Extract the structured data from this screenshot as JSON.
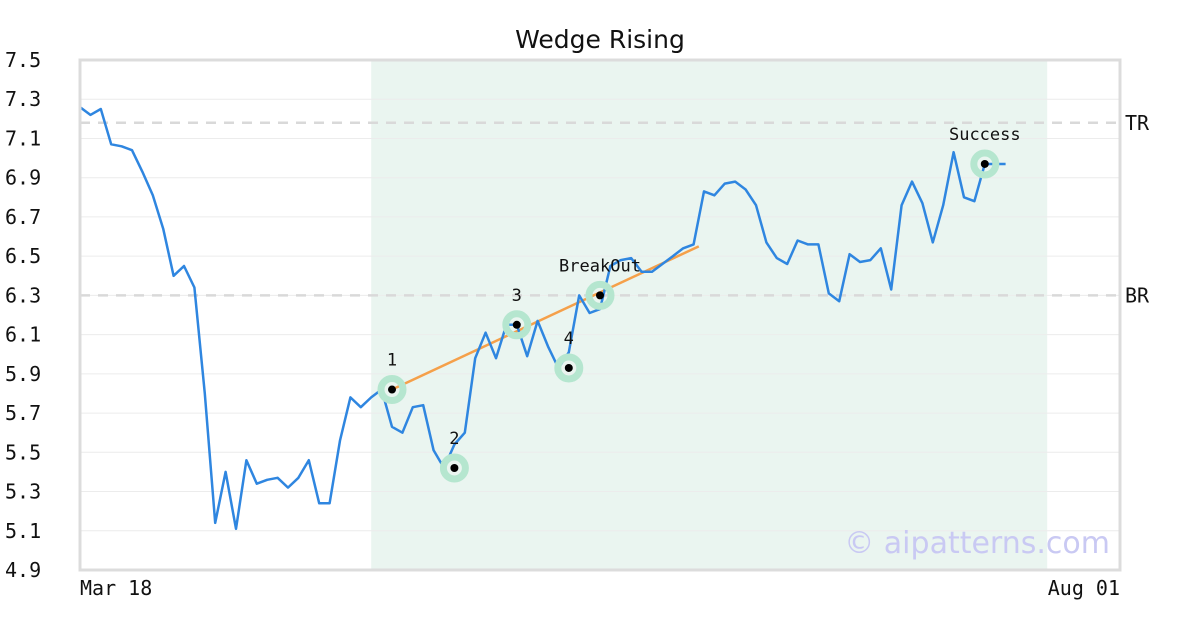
{
  "chart_data": {
    "type": "line",
    "title": "Wedge Rising",
    "xlabel": "",
    "ylabel": "",
    "x_tick_labels": [
      "Mar 18",
      "Aug 01"
    ],
    "x_range": [
      0,
      100
    ],
    "ylim": [
      4.9,
      7.5
    ],
    "y_ticks": [
      4.9,
      5.1,
      5.3,
      5.5,
      5.7,
      5.9,
      6.1,
      6.3,
      6.5,
      6.7,
      6.9,
      7.1,
      7.3,
      7.5
    ],
    "y_tick_labels": [
      "4.9",
      "5.1",
      "5.3",
      "5.5",
      "5.7",
      "5.9",
      "6.1",
      "6.3",
      "6.5",
      "6.7",
      "6.9",
      "7.1",
      "7.3",
      "7.5"
    ],
    "grid": true,
    "colors": {
      "series": "#2f86e0",
      "trendline": "#f5a04a",
      "highlight": "#eaf5f0",
      "marker_ring": "#b5e6cf",
      "level": "#d9d9d9"
    },
    "highlight_region": {
      "x_start": 28,
      "x_end": 93
    },
    "series": [
      {
        "values": [
          [
            0,
            7.26
          ],
          [
            1,
            7.22
          ],
          [
            2,
            7.25
          ],
          [
            3,
            7.07
          ],
          [
            4,
            7.06
          ],
          [
            5,
            7.04
          ],
          [
            6,
            6.93
          ],
          [
            7,
            6.81
          ],
          [
            8,
            6.64
          ],
          [
            9,
            6.4
          ],
          [
            10,
            6.45
          ],
          [
            11,
            6.34
          ],
          [
            12,
            5.8
          ],
          [
            13,
            5.14
          ],
          [
            14,
            5.4
          ],
          [
            15,
            5.11
          ],
          [
            16,
            5.46
          ],
          [
            17,
            5.34
          ],
          [
            18,
            5.36
          ],
          [
            19,
            5.37
          ],
          [
            20,
            5.32
          ],
          [
            21,
            5.37
          ],
          [
            22,
            5.46
          ],
          [
            23,
            5.24
          ],
          [
            24,
            5.24
          ],
          [
            25,
            5.56
          ],
          [
            26,
            5.78
          ],
          [
            27,
            5.73
          ],
          [
            28,
            5.78
          ],
          [
            29,
            5.82
          ],
          [
            30,
            5.63
          ],
          [
            31,
            5.6
          ],
          [
            32,
            5.73
          ],
          [
            33,
            5.74
          ],
          [
            34,
            5.51
          ],
          [
            35,
            5.42
          ],
          [
            36,
            5.54
          ],
          [
            37,
            5.6
          ],
          [
            38,
            5.98
          ],
          [
            39,
            6.11
          ],
          [
            40,
            5.98
          ],
          [
            41,
            6.15
          ],
          [
            42,
            6.15
          ],
          [
            43,
            5.99
          ],
          [
            44,
            6.17
          ],
          [
            45,
            6.04
          ],
          [
            46,
            5.93
          ],
          [
            47,
            6.01
          ],
          [
            48,
            6.3
          ],
          [
            49,
            6.21
          ],
          [
            50,
            6.23
          ],
          [
            51,
            6.45
          ],
          [
            52,
            6.48
          ],
          [
            53,
            6.49
          ],
          [
            54,
            6.42
          ],
          [
            55,
            6.42
          ],
          [
            56,
            6.46
          ],
          [
            57,
            6.5
          ],
          [
            58,
            6.54
          ],
          [
            59,
            6.56
          ],
          [
            60,
            6.83
          ],
          [
            61,
            6.81
          ],
          [
            62,
            6.87
          ],
          [
            63,
            6.88
          ],
          [
            64,
            6.84
          ],
          [
            65,
            6.76
          ],
          [
            66,
            6.57
          ],
          [
            67,
            6.49
          ],
          [
            68,
            6.46
          ],
          [
            69,
            6.58
          ],
          [
            70,
            6.56
          ],
          [
            71,
            6.56
          ],
          [
            72,
            6.31
          ],
          [
            73,
            6.27
          ],
          [
            74,
            6.51
          ],
          [
            75,
            6.47
          ],
          [
            76,
            6.48
          ],
          [
            77,
            6.54
          ],
          [
            78,
            6.33
          ],
          [
            79,
            6.76
          ],
          [
            80,
            6.88
          ],
          [
            81,
            6.77
          ],
          [
            82,
            6.57
          ],
          [
            83,
            6.76
          ],
          [
            84,
            7.03
          ],
          [
            85,
            6.8
          ],
          [
            86,
            6.78
          ],
          [
            87,
            6.97
          ],
          [
            88,
            6.97
          ],
          [
            89,
            6.97
          ]
        ]
      }
    ],
    "trendline": {
      "from": [
        30,
        5.82
      ],
      "to": [
        59.5,
        6.55
      ]
    },
    "levels": [
      {
        "label": "TR",
        "y": 7.18
      },
      {
        "label": "BR",
        "y": 6.3
      }
    ],
    "markers": [
      {
        "label": "1",
        "x": 30,
        "y": 5.82,
        "label_position": "above"
      },
      {
        "label": "2",
        "x": 36,
        "y": 5.42,
        "label_position": "above"
      },
      {
        "label": "3",
        "x": 42,
        "y": 6.15,
        "label_position": "above"
      },
      {
        "label": "4",
        "x": 47,
        "y": 5.93,
        "label_position": "above"
      },
      {
        "label": "BreakOut",
        "x": 50,
        "y": 6.3,
        "label_position": "above"
      },
      {
        "label": "Success",
        "x": 87,
        "y": 6.97,
        "label_position": "above"
      }
    ],
    "watermark": "© aipatterns.com"
  }
}
